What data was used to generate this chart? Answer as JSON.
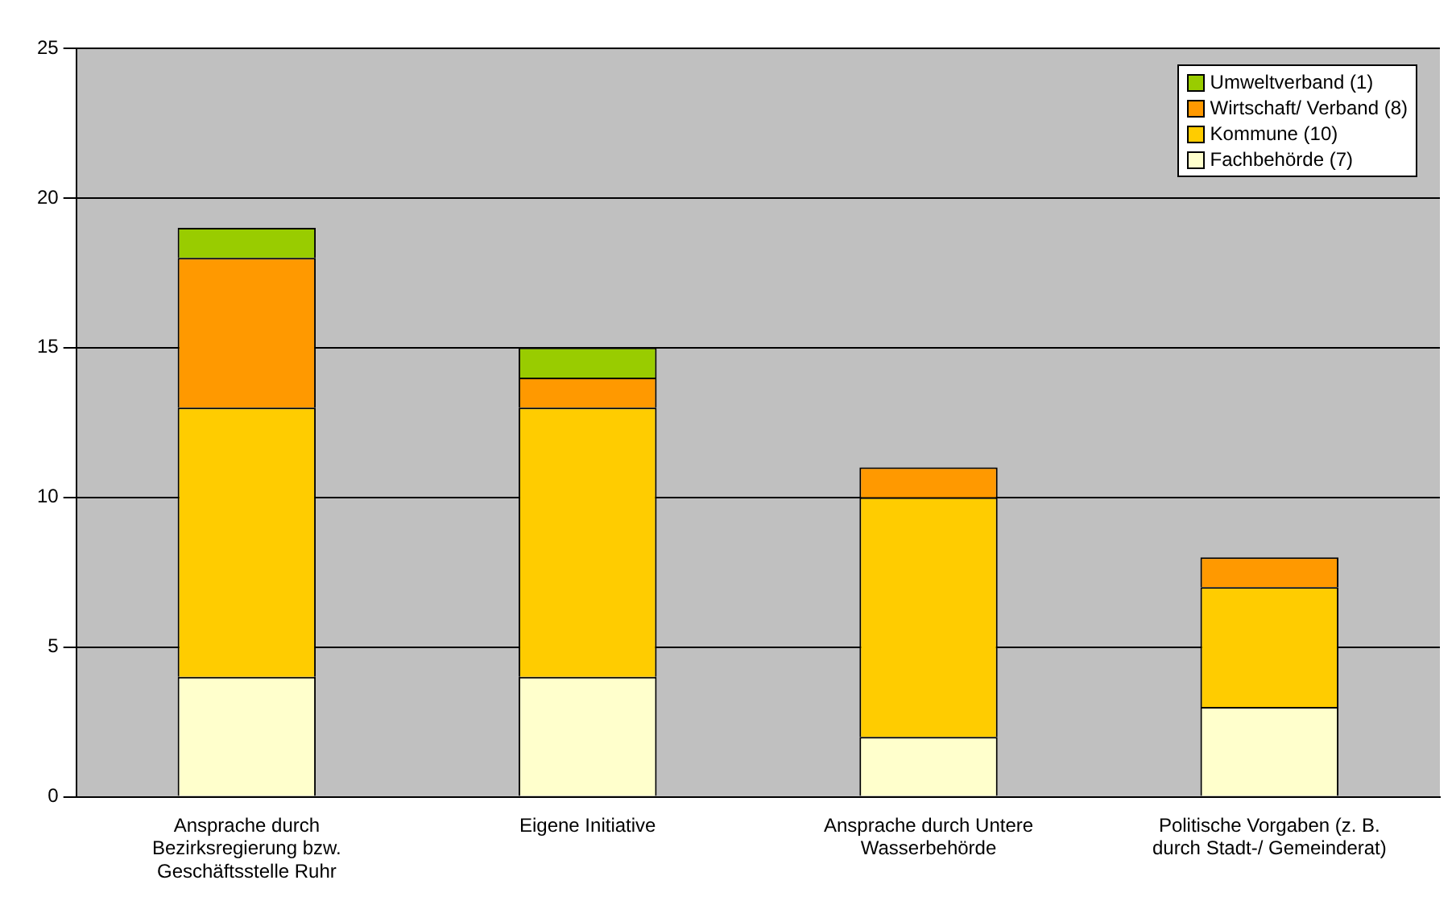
{
  "chart_data": {
    "type": "bar",
    "stacked": true,
    "categories": [
      "Ansprache durch Bezirksregierung bzw. Geschäftsstelle Ruhr",
      "Eigene Initiative",
      "Ansprache durch Untere Wasserbehörde",
      "Politische Vorgaben (z. B. durch Stadt-/ Gemeinderat)"
    ],
    "series": [
      {
        "name": "Fachbehörde (7)",
        "color": "#ffffcc",
        "values": [
          4,
          4,
          2,
          3
        ]
      },
      {
        "name": "Kommune (10)",
        "color": "#ffcc00",
        "values": [
          9,
          9,
          8,
          4
        ]
      },
      {
        "name": "Wirtschaft/ Verband (8)",
        "color": "#ff9900",
        "values": [
          5,
          1,
          1,
          1
        ]
      },
      {
        "name": "Umweltverband (1)",
        "color": "#99cc00",
        "values": [
          1,
          1,
          null,
          null
        ]
      }
    ],
    "ylim": [
      0,
      25
    ],
    "yticks": [
      0,
      5,
      10,
      15,
      20,
      25
    ],
    "grid": "y",
    "legend": "top right"
  }
}
